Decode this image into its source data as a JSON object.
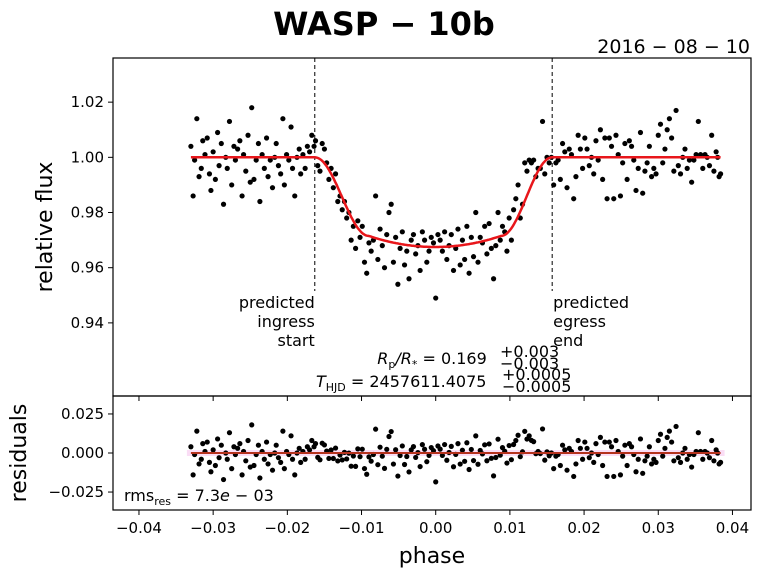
{
  "chart_data": {
    "type": "scatter",
    "title": "WASP − 10b",
    "subtitle": "2016 − 08 − 10",
    "xlabel": "phase",
    "ylabel_top": "relative flux",
    "ylabel_bottom": "residuals",
    "xlim": [
      -0.0435,
      0.0425
    ],
    "ylim_top": [
      0.9135,
      1.036
    ],
    "ylim_bottom": [
      -0.0365,
      0.0365
    ],
    "xticks": [
      -0.04,
      -0.03,
      -0.02,
      -0.01,
      0.0,
      0.01,
      0.02,
      0.03,
      0.04
    ],
    "xtick_labels": [
      "−0.04",
      "−0.03",
      "−0.02",
      "−0.01",
      "0.00",
      "0.01",
      "0.02",
      "0.03",
      "0.04"
    ],
    "yticks_top": [
      0.94,
      0.96,
      0.98,
      1.0,
      1.02
    ],
    "ytick_labels_top": [
      "0.94",
      "0.96",
      "0.98",
      "1.00",
      "1.02"
    ],
    "yticks_bottom": [
      -0.025,
      0.0,
      0.025
    ],
    "ytick_labels_bottom": [
      "−0.025",
      "0.000",
      "0.025"
    ],
    "grid": false,
    "model": {
      "name": "transit model",
      "color": "#e8161b",
      "baseline": 1.0,
      "depth": 0.0325,
      "ingress_start": -0.0163,
      "full_start": -0.009,
      "full_end": 0.0088,
      "egress_end": 0.0157,
      "limb_curvature": 0.004
    },
    "predicted_ingress": {
      "phase": -0.0163,
      "label": [
        "predicted",
        "ingress",
        "start"
      ]
    },
    "predicted_egress": {
      "phase": 0.0157,
      "label": [
        "predicted",
        "egress",
        "end"
      ]
    },
    "annotations": {
      "rp_rs": {
        "symbol": "R",
        "sub1": "p",
        "sep": "/R",
        "sub2": "*",
        "value": " = 0.169",
        "plus": "+0.003",
        "minus": "−0.003"
      },
      "t_hjd": {
        "symbol": "T",
        "sub": "HJD",
        "value": " = 2457611.4075",
        "plus": "+0.0005",
        "minus": "−0.0005"
      },
      "rms": {
        "prefix": "rms",
        "sub": "res",
        "value": " = 7.3",
        "exp": "e",
        "rest": " − 03"
      }
    },
    "points_color": "#000000",
    "points": [
      [
        -0.033,
        1.004
      ],
      [
        -0.0327,
        0.986
      ],
      [
        -0.0325,
        0.999
      ],
      [
        -0.0322,
        1.014
      ],
      [
        -0.0319,
        0.993
      ],
      [
        -0.0316,
        0.996
      ],
      [
        -0.0314,
        1.006
      ],
      [
        -0.0311,
        1.001
      ],
      [
        -0.0308,
        1.007
      ],
      [
        -0.0305,
        0.994
      ],
      [
        -0.0303,
        0.988
      ],
      [
        -0.03,
        1.002
      ],
      [
        -0.0297,
        0.992
      ],
      [
        -0.0294,
        1.009
      ],
      [
        -0.0292,
        0.997
      ],
      [
        -0.0289,
        1.005
      ],
      [
        -0.0286,
        0.983
      ],
      [
        -0.0283,
        1.0
      ],
      [
        -0.0281,
        0.996
      ],
      [
        -0.0278,
        1.013
      ],
      [
        -0.0275,
        0.99
      ],
      [
        -0.0272,
        1.004
      ],
      [
        -0.027,
        0.999
      ],
      [
        -0.0267,
        1.003
      ],
      [
        -0.0264,
        1.006
      ],
      [
        -0.0261,
        0.986
      ],
      [
        -0.0259,
        1.001
      ],
      [
        -0.0256,
        0.995
      ],
      [
        -0.0253,
        1.008
      ],
      [
        -0.025,
        0.991
      ],
      [
        -0.0248,
        1.018
      ],
      [
        -0.0245,
        0.992
      ],
      [
        -0.0242,
        0.999
      ],
      [
        -0.0239,
        1.005
      ],
      [
        -0.0237,
        0.984
      ],
      [
        -0.0234,
        1.001
      ],
      [
        -0.0231,
        0.996
      ],
      [
        -0.0228,
        1.007
      ],
      [
        -0.0226,
        0.993
      ],
      [
        -0.0223,
        0.999
      ],
      [
        -0.022,
        0.989
      ],
      [
        -0.0217,
        1.0
      ],
      [
        -0.0215,
        1.005
      ],
      [
        -0.0212,
        0.997
      ],
      [
        -0.0209,
        0.994
      ],
      [
        -0.0206,
        1.014
      ],
      [
        -0.0204,
        0.99
      ],
      [
        -0.0201,
        1.001
      ],
      [
        -0.0198,
        0.999
      ],
      [
        -0.0195,
        1.011
      ],
      [
        -0.0193,
        0.996
      ],
      [
        -0.019,
        0.986
      ],
      [
        -0.0187,
        1.0
      ],
      [
        -0.0184,
        1.003
      ],
      [
        -0.0182,
        0.994
      ],
      [
        -0.0179,
        1.001
      ],
      [
        -0.0176,
        0.996
      ],
      [
        -0.0173,
        1.004
      ],
      [
        -0.017,
        1.002
      ],
      [
        -0.0167,
        1.008
      ],
      [
        -0.0164,
        1.004
      ],
      [
        -0.0162,
        1.006
      ],
      [
        -0.0159,
        0.997
      ],
      [
        -0.0156,
        0.995
      ],
      [
        -0.0153,
        1.005
      ],
      [
        -0.015,
        1.003
      ],
      [
        -0.0147,
        0.998
      ],
      [
        -0.0144,
        0.992
      ],
      [
        -0.0141,
        0.996
      ],
      [
        -0.0138,
        0.989
      ],
      [
        -0.0135,
        0.994
      ],
      [
        -0.0132,
        0.984
      ],
      [
        -0.0129,
        0.986
      ],
      [
        -0.0126,
        0.981
      ],
      [
        -0.0123,
        0.984
      ],
      [
        -0.012,
        0.978
      ],
      [
        -0.0117,
        0.98
      ],
      [
        -0.0114,
        0.97
      ],
      [
        -0.0111,
        0.975
      ],
      [
        -0.0108,
        0.967
      ],
      [
        -0.0105,
        0.977
      ],
      [
        -0.0102,
        0.971
      ],
      [
        -0.0099,
        0.975
      ],
      [
        -0.0096,
        0.962
      ],
      [
        -0.0093,
        0.958
      ],
      [
        -0.009,
        0.969
      ],
      [
        -0.0087,
        0.966
      ],
      [
        -0.0084,
        0.97
      ],
      [
        -0.0081,
        0.986
      ],
      [
        -0.0078,
        0.963
      ],
      [
        -0.0075,
        0.974
      ],
      [
        -0.0072,
        0.968
      ],
      [
        -0.0069,
        0.96
      ],
      [
        -0.0066,
        0.972
      ],
      [
        -0.0063,
        0.98
      ],
      [
        -0.006,
        0.983
      ],
      [
        -0.0057,
        0.962
      ],
      [
        -0.0054,
        0.971
      ],
      [
        -0.0051,
        0.954
      ],
      [
        -0.0048,
        0.967
      ],
      [
        -0.0045,
        0.973
      ],
      [
        -0.0042,
        0.961
      ],
      [
        -0.0039,
        0.966
      ],
      [
        -0.0036,
        0.956
      ],
      [
        -0.0033,
        0.97
      ],
      [
        -0.003,
        0.972
      ],
      [
        -0.0027,
        0.965
      ],
      [
        -0.0024,
        0.968
      ],
      [
        -0.0021,
        0.959
      ],
      [
        -0.0018,
        0.973
      ],
      [
        -0.0015,
        0.97
      ],
      [
        -0.0012,
        0.962
      ],
      [
        -0.0009,
        0.966
      ],
      [
        -0.0006,
        0.971
      ],
      [
        -0.0003,
        0.969
      ],
      [
        0.0,
        0.949
      ],
      [
        0.0003,
        0.972
      ],
      [
        0.0006,
        0.97
      ],
      [
        0.0009,
        0.966
      ],
      [
        0.0012,
        0.973
      ],
      [
        0.0015,
        0.963
      ],
      [
        0.0018,
        0.968
      ],
      [
        0.0021,
        0.972
      ],
      [
        0.0024,
        0.959
      ],
      [
        0.0027,
        0.967
      ],
      [
        0.003,
        0.974
      ],
      [
        0.0033,
        0.961
      ],
      [
        0.0036,
        0.97
      ],
      [
        0.0039,
        0.963
      ],
      [
        0.0042,
        0.975
      ],
      [
        0.0045,
        0.958
      ],
      [
        0.0048,
        0.971
      ],
      [
        0.0051,
        0.964
      ],
      [
        0.0054,
        0.98
      ],
      [
        0.0057,
        0.962
      ],
      [
        0.006,
        0.971
      ],
      [
        0.0063,
        0.969
      ],
      [
        0.0066,
        0.975
      ],
      [
        0.0069,
        0.965
      ],
      [
        0.0072,
        0.976
      ],
      [
        0.0075,
        0.967
      ],
      [
        0.0078,
        0.956
      ],
      [
        0.0081,
        0.968
      ],
      [
        0.0084,
        0.98
      ],
      [
        0.0087,
        0.97
      ],
      [
        0.009,
        0.975
      ],
      [
        0.0093,
        0.973
      ],
      [
        0.0096,
        0.966
      ],
      [
        0.0099,
        0.978
      ],
      [
        0.0102,
        0.97
      ],
      [
        0.0105,
        0.981
      ],
      [
        0.0108,
        0.985
      ],
      [
        0.0111,
        0.99
      ],
      [
        0.0114,
        0.978
      ],
      [
        0.0117,
        0.983
      ],
      [
        0.012,
        0.998
      ],
      [
        0.0123,
        0.995
      ],
      [
        0.0126,
        0.999
      ],
      [
        0.0129,
        0.998
      ],
      [
        0.0132,
        0.999
      ],
      [
        0.0135,
        0.993
      ],
      [
        0.0138,
        0.996
      ],
      [
        0.0141,
        0.996
      ],
      [
        0.0144,
        1.013
      ],
      [
        0.0147,
        0.994
      ],
      [
        0.015,
        1.0
      ],
      [
        0.0153,
        0.998
      ],
      [
        0.0156,
        1.0
      ],
      [
        0.0159,
        0.99
      ],
      [
        0.0162,
        0.998
      ],
      [
        0.0165,
        0.999
      ],
      [
        0.0168,
        0.992
      ],
      [
        0.0171,
        1.005
      ],
      [
        0.0174,
        1.002
      ],
      [
        0.0177,
        0.989
      ],
      [
        0.018,
        1.003
      ],
      [
        0.0183,
        1.001
      ],
      [
        0.0186,
        0.985
      ],
      [
        0.0189,
        0.993
      ],
      [
        0.0192,
        1.008
      ],
      [
        0.0195,
        1.003
      ],
      [
        0.0198,
        0.996
      ],
      [
        0.0201,
        1.007
      ],
      [
        0.0204,
        1.003
      ],
      [
        0.0207,
        0.997
      ],
      [
        0.021,
        1.0
      ],
      [
        0.0213,
        0.994
      ],
      [
        0.0216,
        1.006
      ],
      [
        0.0219,
        0.999
      ],
      [
        0.0222,
        1.01
      ],
      [
        0.0225,
        0.992
      ],
      [
        0.0228,
        1.007
      ],
      [
        0.0231,
        0.985
      ],
      [
        0.0234,
        1.007
      ],
      [
        0.0237,
        1.004
      ],
      [
        0.024,
        0.985
      ],
      [
        0.0243,
        1.008
      ],
      [
        0.0246,
        1.001
      ],
      [
        0.0249,
        0.986
      ],
      [
        0.0252,
        0.998
      ],
      [
        0.0255,
        1.005
      ],
      [
        0.0258,
        0.992
      ],
      [
        0.0261,
        1.006
      ],
      [
        0.0264,
        1.004
      ],
      [
        0.0267,
        0.999
      ],
      [
        0.027,
        0.988
      ],
      [
        0.0273,
        0.996
      ],
      [
        0.0276,
        1.009
      ],
      [
        0.0279,
        0.987
      ],
      [
        0.0282,
        0.995
      ],
      [
        0.0285,
        0.998
      ],
      [
        0.0288,
        1.004
      ],
      [
        0.0291,
        0.993
      ],
      [
        0.0294,
        0.996
      ],
      [
        0.0297,
        0.994
      ],
      [
        0.03,
        1.008
      ],
      [
        0.0303,
        1.012
      ],
      [
        0.0306,
        0.998
      ],
      [
        0.0309,
        1.003
      ],
      [
        0.0312,
        1.01
      ],
      [
        0.0315,
        1.014
      ],
      [
        0.0318,
        1.007
      ],
      [
        0.0321,
        0.995
      ],
      [
        0.0324,
        1.017
      ],
      [
        0.0327,
        0.997
      ],
      [
        0.033,
        0.994
      ],
      [
        0.0333,
        1.0
      ],
      [
        0.0336,
        1.003
      ],
      [
        0.0339,
        0.996
      ],
      [
        0.0342,
        0.999
      ],
      [
        0.0345,
        0.991
      ],
      [
        0.0348,
        0.999
      ],
      [
        0.0351,
        1.001
      ],
      [
        0.0354,
        1.013
      ],
      [
        0.0357,
        1.001
      ],
      [
        0.036,
        0.996
      ],
      [
        0.0363,
        1.001
      ],
      [
        0.0366,
        1.0
      ],
      [
        0.0369,
        0.997
      ],
      [
        0.0372,
        1.008
      ],
      [
        0.0375,
        0.995
      ],
      [
        0.0378,
        1.002
      ],
      [
        0.038,
        1.0
      ],
      [
        0.0382,
        0.993
      ],
      [
        0.0384,
        0.994
      ]
    ]
  }
}
